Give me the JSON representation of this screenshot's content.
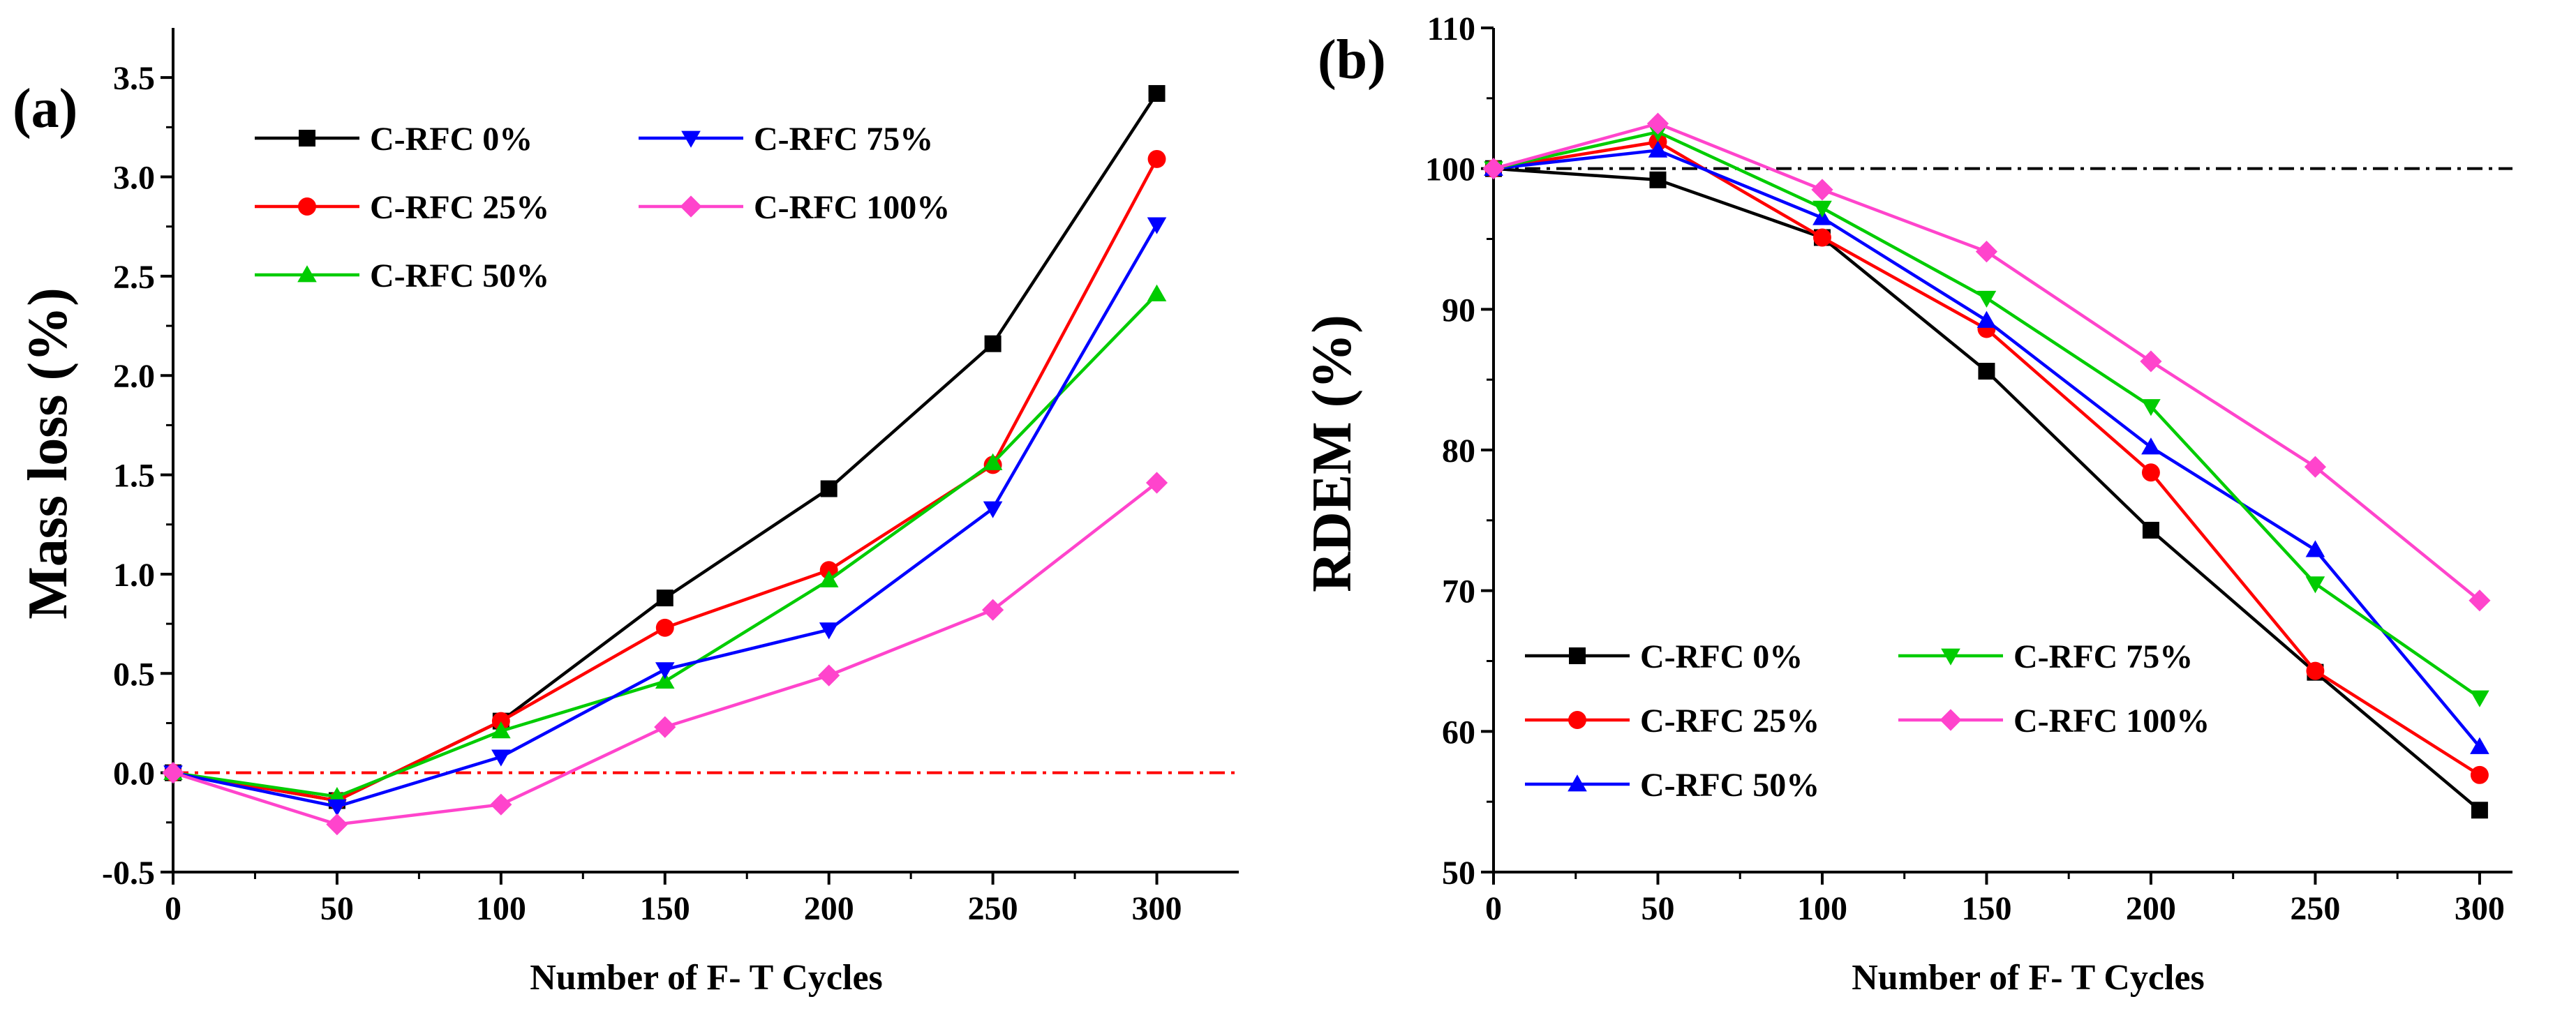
{
  "chart_data": [
    {
      "type": "line",
      "panel_label": "(a)",
      "xlabel": "Number of F- T Cycles",
      "ylabel": "Mass loss (%)",
      "xlim": [
        0,
        325
      ],
      "ylim": [
        -0.5,
        3.75
      ],
      "xticks": [
        0,
        50,
        100,
        150,
        200,
        250,
        300
      ],
      "xtick_labels": [
        "0",
        "50",
        "100",
        "150",
        "200",
        "250",
        "300"
      ],
      "yticks": [
        -0.5,
        0.0,
        0.5,
        1.0,
        1.5,
        2.0,
        2.5,
        3.0,
        3.5
      ],
      "ytick_labels": [
        "-0.5",
        "0.0",
        "0.5",
        "1.0",
        "1.5",
        "2.0",
        "2.5",
        "3.0",
        "3.5"
      ],
      "reference_line": {
        "y": 0,
        "color": "#ff0000",
        "style": "dash-dot"
      },
      "legend_position": "top-left",
      "x": [
        0,
        50,
        100,
        150,
        200,
        250,
        300
      ],
      "series": [
        {
          "name": "C-RFC 0%",
          "color": "#000000",
          "marker": "square",
          "values": [
            0,
            -0.14,
            0.26,
            0.88,
            1.43,
            2.16,
            3.42
          ]
        },
        {
          "name": "C-RFC 25%",
          "color": "#ff0000",
          "marker": "circle",
          "values": [
            0,
            -0.14,
            0.26,
            0.73,
            1.02,
            1.55,
            3.09
          ]
        },
        {
          "name": "C-RFC 50%",
          "color": "#00cc00",
          "marker": "triangle-up",
          "values": [
            0,
            -0.12,
            0.21,
            0.46,
            0.97,
            1.56,
            2.41
          ]
        },
        {
          "name": "C-RFC 75%",
          "color": "#0000ff",
          "marker": "triangle-down",
          "values": [
            0,
            -0.17,
            0.08,
            0.52,
            0.72,
            1.33,
            2.76
          ]
        },
        {
          "name": "C-RFC 100%",
          "color": "#ff44cc",
          "marker": "diamond",
          "values": [
            0,
            -0.26,
            -0.16,
            0.23,
            0.49,
            0.82,
            1.46
          ]
        }
      ]
    },
    {
      "type": "line",
      "panel_label": "(b)",
      "xlabel": "Number of F- T Cycles",
      "ylabel": "RDEM (%)",
      "xlim": [
        0,
        310
      ],
      "ylim": [
        50,
        110
      ],
      "xticks": [
        0,
        50,
        100,
        150,
        200,
        250,
        300
      ],
      "xtick_labels": [
        "0",
        "50",
        "100",
        "150",
        "200",
        "250",
        "300"
      ],
      "yticks": [
        50,
        60,
        70,
        80,
        90,
        100,
        110
      ],
      "ytick_labels": [
        "50",
        "60",
        "70",
        "80",
        "90",
        "100",
        "110"
      ],
      "reference_line": {
        "y": 100,
        "color": "#000000",
        "style": "dash-dot"
      },
      "legend_position": "bottom-left",
      "x": [
        0,
        50,
        100,
        150,
        200,
        250,
        300
      ],
      "series": [
        {
          "name": "C-RFC 0%",
          "color": "#000000",
          "marker": "square",
          "values": [
            100,
            99.2,
            95.1,
            85.6,
            74.3,
            64.2,
            54.4
          ]
        },
        {
          "name": "C-RFC 25%",
          "color": "#ff0000",
          "marker": "circle",
          "values": [
            100,
            101.9,
            95.1,
            88.6,
            78.4,
            64.3,
            56.9
          ]
        },
        {
          "name": "C-RFC 50%",
          "color": "#0000ff",
          "marker": "triangle-up",
          "values": [
            100,
            101.3,
            96.5,
            89.2,
            80.2,
            72.9,
            58.9
          ]
        },
        {
          "name": "C-RFC 75%",
          "color": "#00cc00",
          "marker": "triangle-down",
          "values": [
            100,
            102.6,
            97.2,
            90.8,
            83.1,
            70.5,
            62.4
          ]
        },
        {
          "name": "C-RFC 100%",
          "color": "#ff44cc",
          "marker": "diamond",
          "values": [
            100,
            103.2,
            98.5,
            94.1,
            86.3,
            78.8,
            69.3
          ]
        }
      ]
    }
  ]
}
